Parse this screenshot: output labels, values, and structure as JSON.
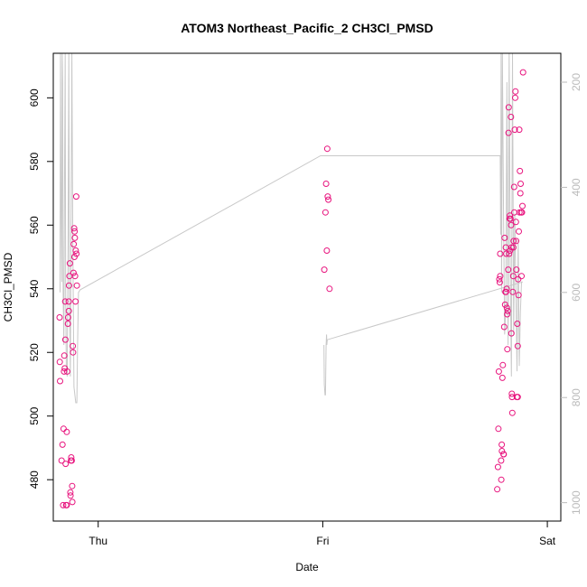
{
  "chart_data": {
    "type": "scatter",
    "title": "ATOM3 Northeast_Pacific_2 CH3Cl_PMSD",
    "xlabel": "Date",
    "ylabel": "CH3Cl_PMSD",
    "x_ticks": [
      "Thu",
      "Fri",
      "Sat"
    ],
    "y_ticks": [
      480,
      500,
      520,
      540,
      560,
      580,
      600
    ],
    "y2_ticks": [
      200,
      400,
      600,
      800,
      1000
    ],
    "ylim": [
      467,
      614
    ],
    "y2lim": [
      1035,
      145
    ],
    "x_range_days": [
      -0.2,
      2.06
    ],
    "grid": false,
    "series": [
      {
        "color": "#e8147e",
        "points": [
          [
            -0.172,
            531
          ],
          [
            -0.171,
            517
          ],
          [
            -0.17,
            511
          ],
          [
            -0.163,
            486
          ],
          [
            -0.159,
            491
          ],
          [
            -0.156,
            472
          ],
          [
            -0.154,
            496
          ],
          [
            -0.152,
            514
          ],
          [
            -0.151,
            519
          ],
          [
            -0.149,
            515
          ],
          [
            -0.147,
            536
          ],
          [
            -0.146,
            524
          ],
          [
            -0.145,
            485
          ],
          [
            -0.143,
            472
          ],
          [
            -0.14,
            495
          ],
          [
            -0.14,
            472
          ],
          [
            -0.138,
            514
          ],
          [
            -0.135,
            529
          ],
          [
            -0.134,
            531
          ],
          [
            -0.131,
            536
          ],
          [
            -0.131,
            533
          ],
          [
            -0.13,
            541
          ],
          [
            -0.128,
            544
          ],
          [
            -0.126,
            548
          ],
          [
            -0.124,
            476
          ],
          [
            -0.123,
            475
          ],
          [
            -0.121,
            486
          ],
          [
            -0.12,
            487
          ],
          [
            -0.118,
            486
          ],
          [
            -0.116,
            478
          ],
          [
            -0.115,
            473
          ],
          [
            -0.113,
            522
          ],
          [
            -0.112,
            520
          ],
          [
            -0.11,
            545
          ],
          [
            -0.109,
            554
          ],
          [
            -0.107,
            559
          ],
          [
            -0.106,
            550
          ],
          [
            -0.105,
            558
          ],
          [
            -0.104,
            556
          ],
          [
            -0.103,
            544
          ],
          [
            -0.101,
            536
          ],
          [
            -0.1,
            552
          ],
          [
            -0.098,
            569
          ],
          [
            -0.097,
            551
          ],
          [
            -0.095,
            541
          ],
          [
            1.007,
            546
          ],
          [
            1.012,
            564
          ],
          [
            1.015,
            573
          ],
          [
            1.018,
            552
          ],
          [
            1.02,
            584
          ],
          [
            1.022,
            569
          ],
          [
            1.025,
            568
          ],
          [
            1.03,
            540
          ],
          [
            1.777,
            477
          ],
          [
            1.78,
            484
          ],
          [
            1.782,
            496
          ],
          [
            1.784,
            514
          ],
          [
            1.786,
            543
          ],
          [
            1.788,
            542
          ],
          [
            1.79,
            551
          ],
          [
            1.79,
            544
          ],
          [
            1.794,
            486
          ],
          [
            1.795,
            480
          ],
          [
            1.797,
            491
          ],
          [
            1.798,
            489
          ],
          [
            1.8,
            512
          ],
          [
            1.802,
            516
          ],
          [
            1.805,
            488
          ],
          [
            1.806,
            488
          ],
          [
            1.808,
            528
          ],
          [
            1.81,
            556
          ],
          [
            1.812,
            535
          ],
          [
            1.813,
            539
          ],
          [
            1.815,
            553
          ],
          [
            1.816,
            539
          ],
          [
            1.817,
            551
          ],
          [
            1.819,
            540
          ],
          [
            1.82,
            534
          ],
          [
            1.821,
            532
          ],
          [
            1.822,
            521
          ],
          [
            1.824,
            533
          ],
          [
            1.826,
            546
          ],
          [
            1.827,
            589
          ],
          [
            1.828,
            597
          ],
          [
            1.83,
            551
          ],
          [
            1.832,
            562
          ],
          [
            1.833,
            563
          ],
          [
            1.834,
            552
          ],
          [
            1.836,
            562
          ],
          [
            1.838,
            594
          ],
          [
            1.839,
            560
          ],
          [
            1.84,
            526
          ],
          [
            1.841,
            553
          ],
          [
            1.842,
            507
          ],
          [
            1.843,
            506
          ],
          [
            1.844,
            501
          ],
          [
            1.846,
            539
          ],
          [
            1.848,
            544
          ],
          [
            1.849,
            553
          ],
          [
            1.85,
            555
          ],
          [
            1.852,
            572
          ],
          [
            1.853,
            564
          ],
          [
            1.855,
            590
          ],
          [
            1.857,
            600
          ],
          [
            1.858,
            602
          ],
          [
            1.86,
            561
          ],
          [
            1.861,
            555
          ],
          [
            1.862,
            546
          ],
          [
            1.864,
            506
          ],
          [
            1.866,
            529
          ],
          [
            1.868,
            506
          ],
          [
            1.868,
            522
          ],
          [
            1.87,
            543
          ],
          [
            1.872,
            538
          ],
          [
            1.873,
            558
          ],
          [
            1.875,
            590
          ],
          [
            1.876,
            564
          ],
          [
            1.878,
            577
          ],
          [
            1.88,
            570
          ],
          [
            1.881,
            573
          ],
          [
            1.883,
            564
          ],
          [
            1.885,
            544
          ],
          [
            1.887,
            564
          ],
          [
            1.889,
            566
          ],
          [
            1.892,
            608
          ]
        ]
      },
      {
        "color": "#c8c8c8",
        "axis": "right",
        "segments": [
          [
            [
              -0.17,
              600
            ],
            [
              -0.168,
              120
            ],
            [
              -0.165,
              450
            ],
            [
              -0.162,
              580
            ],
            [
              -0.16,
              120
            ],
            [
              -0.158,
              200
            ],
            [
              -0.156,
              600
            ],
            [
              -0.153,
              700
            ],
            [
              -0.15,
              400
            ],
            [
              -0.147,
              120
            ],
            [
              -0.145,
              600
            ],
            [
              -0.142,
              740
            ],
            [
              -0.138,
              760
            ],
            [
              -0.134,
              500
            ],
            [
              -0.131,
              120
            ],
            [
              -0.128,
              600
            ],
            [
              -0.124,
              760
            ],
            [
              -0.12,
              400
            ],
            [
              -0.117,
              120
            ],
            [
              -0.113,
              500
            ],
            [
              -0.108,
              780
            ],
            [
              -0.1,
              810
            ],
            [
              -0.095,
              810
            ],
            [
              -0.092,
              700
            ],
            [
              -0.088,
              600
            ],
            [
              -0.08,
              595
            ],
            [
              0.99,
              340
            ],
            [
              1.79,
              340
            ],
            [
              1.792,
              490
            ],
            [
              1.794,
              120
            ],
            [
              1.796,
              600
            ],
            [
              1.8,
              120
            ],
            [
              1.805,
              450
            ],
            [
              1.81,
              680
            ],
            [
              1.815,
              630
            ],
            [
              1.82,
              200
            ],
            [
              1.825,
              700
            ],
            [
              1.83,
              120
            ],
            [
              1.835,
              560
            ],
            [
              1.84,
              760
            ],
            [
              1.845,
              120
            ],
            [
              1.85,
              680
            ],
            [
              1.855,
              450
            ],
            [
              1.86,
              600
            ],
            [
              1.865,
              750
            ],
            [
              1.87,
              500
            ],
            [
              1.875,
              740
            ],
            [
              1.88,
              640
            ],
            [
              1.885,
              580
            ],
            [
              1.89,
              580
            ]
          ],
          [
            [
              1.005,
              700
            ],
            [
              1.007,
              775
            ],
            [
              1.01,
              795
            ],
            [
              1.012,
              795
            ],
            [
              1.015,
              700
            ],
            [
              1.017,
              680
            ],
            [
              1.018,
              700
            ],
            [
              1.02,
              690
            ],
            [
              1.89,
              580
            ]
          ]
        ]
      }
    ]
  }
}
